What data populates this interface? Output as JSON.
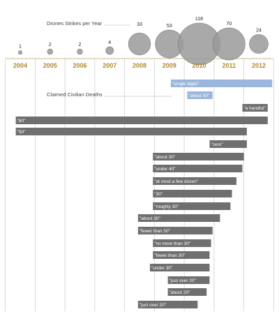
{
  "chart_data": {
    "type": "timeline",
    "strikes_title": "Drones Strikes per Year",
    "deaths_title": "Claimed Civilian Deaths",
    "years": [
      "2004",
      "2005",
      "2006",
      "2007",
      "2008",
      "2009",
      "2010",
      "2011",
      "2012"
    ],
    "strikes_per_year": [
      1,
      2,
      2,
      4,
      33,
      53,
      118,
      70,
      24
    ],
    "claims": [
      {
        "label": "\"single digits\"",
        "start": 2009.05,
        "end": 2012.45,
        "color": "#9bb6dc"
      },
      {
        "label": "\"about 30\"",
        "start": 2009.6,
        "end": 2010.45,
        "color": "#9bb6dc"
      },
      {
        "label": "\"a handful\"",
        "start": 2011.45,
        "end": 2012.3,
        "color": "#6f6f6f"
      },
      {
        "label": "\"60\"",
        "start": 2003.85,
        "end": 2012.3,
        "color": "#6f6f6f"
      },
      {
        "label": "\"50\"",
        "start": 2003.85,
        "end": 2011.6,
        "color": "#6f6f6f"
      },
      {
        "label": "\"zero\"",
        "start": 2010.35,
        "end": 2011.6,
        "color": "#6f6f6f"
      },
      {
        "label": "\"about 30\"",
        "start": 2008.45,
        "end": 2011.5,
        "color": "#6f6f6f"
      },
      {
        "label": "\"under 40\"",
        "start": 2008.45,
        "end": 2011.45,
        "color": "#6f6f6f"
      },
      {
        "label": "\"at most a few dozen\"",
        "start": 2008.45,
        "end": 2011.25,
        "color": "#6f6f6f"
      },
      {
        "label": "\"30\"",
        "start": 2008.45,
        "end": 2011.1,
        "color": "#6f6f6f"
      },
      {
        "label": "\"roughly 30\"",
        "start": 2008.45,
        "end": 2011.05,
        "color": "#6f6f6f"
      },
      {
        "label": "\"about 30\"",
        "start": 2007.95,
        "end": 2010.7,
        "color": "#6f6f6f"
      },
      {
        "label": "\"fewer than 50\"",
        "start": 2007.95,
        "end": 2010.45,
        "color": "#6f6f6f"
      },
      {
        "label": "\"no more than 30\"",
        "start": 2008.45,
        "end": 2010.4,
        "color": "#6f6f6f"
      },
      {
        "label": "\"fewer than 30\"",
        "start": 2008.45,
        "end": 2010.35,
        "color": "#6f6f6f"
      },
      {
        "label": "\"under 30\"",
        "start": 2008.35,
        "end": 2010.35,
        "color": "#6f6f6f"
      },
      {
        "label": "\"just over 20\"",
        "start": 2008.95,
        "end": 2010.35,
        "color": "#6f6f6f"
      },
      {
        "label": "\"about 20\"",
        "start": 2008.95,
        "end": 2010.25,
        "color": "#6f6f6f"
      },
      {
        "label": "\"just over 20\"",
        "start": 2007.95,
        "end": 2009.95,
        "color": "#6f6f6f"
      }
    ],
    "grid": true,
    "colors": {
      "bubble": "#9a9a9a",
      "bubble_stroke": "#7a7a7a",
      "year_label": "#b08a2a",
      "grid": "#cfcfcf",
      "axis": "#c9b98a"
    }
  }
}
